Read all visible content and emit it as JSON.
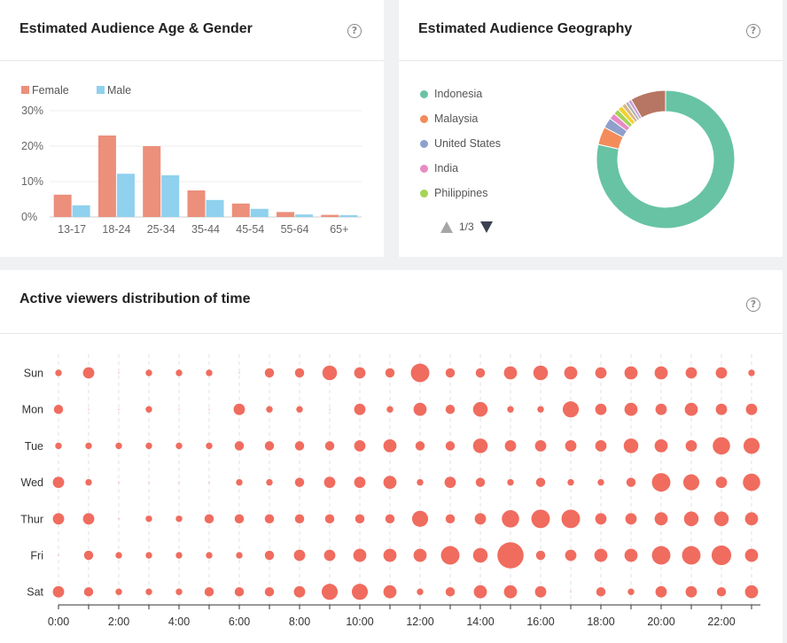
{
  "age_gender": {
    "title": "Estimated Audience Age & Gender",
    "help": "?"
  },
  "geography": {
    "title": "Estimated Audience Geography",
    "help": "?",
    "pager": "1/3"
  },
  "activity": {
    "title": "Active viewers distribution of time",
    "help": "?"
  },
  "colors": {
    "female": "#ec8f7b",
    "male": "#8fd1ee",
    "bubble": "#f06c5f"
  },
  "chart_data": [
    {
      "type": "bar",
      "categories": [
        "13-17",
        "18-24",
        "25-34",
        "35-44",
        "45-54",
        "55-64",
        "65+"
      ],
      "series": [
        {
          "name": "Female",
          "color": "#ec8f7b",
          "values": [
            6.3,
            23.0,
            20.0,
            7.5,
            3.8,
            1.4,
            0.6
          ]
        },
        {
          "name": "Male",
          "color": "#8fd1ee",
          "values": [
            3.3,
            12.2,
            11.8,
            4.8,
            2.3,
            0.7,
            0.5
          ]
        }
      ],
      "yticks": [
        "0%",
        "10%",
        "20%",
        "30%"
      ],
      "ylim": [
        0,
        30
      ],
      "grid": true,
      "legend": "top-left"
    },
    {
      "type": "pie",
      "donut": true,
      "legend_visible": [
        "Indonesia",
        "Malaysia",
        "United States",
        "India",
        "Philippines"
      ],
      "legend": "left",
      "slices": [
        {
          "name": "Indonesia",
          "value": 78.5,
          "color": "#67c3a4"
        },
        {
          "name": "Malaysia",
          "value": 4.2,
          "color": "#f38c5a"
        },
        {
          "name": "United States",
          "value": 2.4,
          "color": "#8ea0cb"
        },
        {
          "name": "India",
          "value": 1.5,
          "color": "#e88bc4"
        },
        {
          "name": "Philippines",
          "value": 1.3,
          "color": "#a5d456"
        },
        {
          "value": 1.2,
          "color": "#f2d12e"
        },
        {
          "value": 1.0,
          "color": "#d9b786"
        },
        {
          "value": 0.8,
          "color": "#b3b3b3"
        },
        {
          "value": 0.8,
          "color": "#c9a0d8"
        },
        {
          "value": 8.3,
          "color": "#b77664"
        }
      ]
    },
    {
      "type": "scatter",
      "subtype": "bubble",
      "days": [
        "Sun",
        "Mon",
        "Tue",
        "Wed",
        "Thur",
        "Fri",
        "Sat"
      ],
      "hours": [
        0,
        1,
        2,
        3,
        4,
        5,
        6,
        7,
        8,
        9,
        10,
        11,
        12,
        13,
        14,
        15,
        16,
        17,
        18,
        19,
        20,
        21,
        22,
        23
      ],
      "x_tick_labels": [
        "0:00",
        "2:00",
        "4:00",
        "6:00",
        "8:00",
        "10:00",
        "12:00",
        "14:00",
        "16:00",
        "18:00",
        "20:00",
        "22:00"
      ],
      "relative_size": [
        [
          1,
          3,
          0,
          1,
          1,
          1,
          0,
          2,
          2,
          5,
          3,
          2,
          8,
          2,
          2,
          4,
          5,
          4,
          3,
          4,
          4,
          3,
          3,
          1
        ],
        [
          2,
          0,
          0,
          1,
          0,
          0,
          3,
          1,
          1,
          0,
          3,
          1,
          4,
          2,
          5,
          1,
          1,
          6,
          3,
          4,
          3,
          4,
          3,
          3
        ],
        [
          1,
          1,
          1,
          1,
          1,
          1,
          2,
          2,
          2,
          2,
          3,
          4,
          2,
          2,
          5,
          3,
          3,
          3,
          3,
          5,
          4,
          3,
          7,
          6
        ],
        [
          3,
          1,
          0,
          0,
          0,
          0,
          1,
          1,
          2,
          3,
          3,
          4,
          1,
          3,
          2,
          1,
          2,
          1,
          1,
          2,
          8,
          6,
          3,
          7
        ],
        [
          3,
          3,
          0,
          1,
          1,
          2,
          2,
          2,
          2,
          2,
          2,
          2,
          6,
          2,
          3,
          7,
          8,
          8,
          3,
          3,
          4,
          5,
          5,
          4
        ],
        [
          0,
          2,
          1,
          1,
          1,
          1,
          1,
          2,
          3,
          3,
          4,
          4,
          4,
          8,
          5,
          16,
          2,
          3,
          4,
          4,
          8,
          8,
          9,
          4
        ],
        [
          3,
          2,
          1,
          1,
          1,
          2,
          2,
          2,
          3,
          6,
          6,
          4,
          1,
          2,
          4,
          4,
          3,
          0,
          2,
          1,
          3,
          3,
          2,
          4
        ]
      ],
      "grid": true
    }
  ]
}
